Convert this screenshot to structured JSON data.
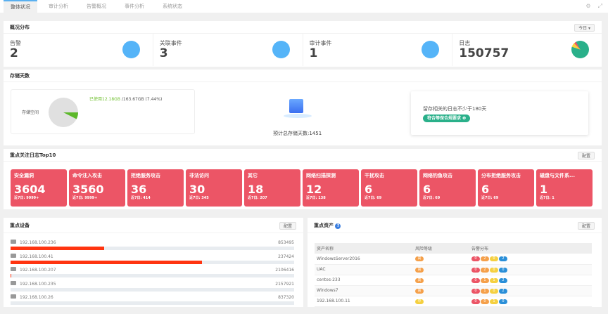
{
  "tabs": [
    "整体状况",
    "审计分析",
    "告警概况",
    "事件分析",
    "系统状态"
  ],
  "overview": {
    "title": "概况分布",
    "range": "今日 ▾",
    "stats": [
      {
        "label": "告警",
        "value": "2"
      },
      {
        "label": "关联事件",
        "value": "3"
      },
      {
        "label": "审计事件",
        "value": "1"
      },
      {
        "label": "日志",
        "value": "150757"
      }
    ]
  },
  "storage": {
    "title": "存储天数",
    "space_label": "存储空间",
    "used": "已使用12.18GB",
    "total": " /163.67GB (7.44%)",
    "used_fraction": 0.0744,
    "days_text": "预计总存储天数:1451",
    "tip": "留存相关的日志不少于180天",
    "badge": "符合等保合规要求 ❶"
  },
  "top10": {
    "title": "重点关注日志Top10",
    "config": "配置",
    "sub_prefix": "近7日:",
    "items": [
      {
        "name": "安全漏洞",
        "value": "3604",
        "week": "9999+"
      },
      {
        "name": "命令注入攻击",
        "value": "3560",
        "week": "9999+"
      },
      {
        "name": "拒绝服务攻击",
        "value": "36",
        "week": "414"
      },
      {
        "name": "非法访问",
        "value": "30",
        "week": "345"
      },
      {
        "name": "其它",
        "value": "18",
        "week": "207"
      },
      {
        "name": "网络扫描探测",
        "value": "12",
        "week": "138"
      },
      {
        "name": "干扰攻击",
        "value": "6",
        "week": "69"
      },
      {
        "name": "网络钓鱼攻击",
        "value": "6",
        "week": "69"
      },
      {
        "name": "分布拒绝服务攻击",
        "value": "6",
        "week": "69"
      },
      {
        "name": "磁盘与文件系...",
        "value": "1",
        "week": "1"
      }
    ]
  },
  "devices": {
    "title": "重点设备",
    "config": "配置",
    "items": [
      {
        "ip": "192.168.100.236",
        "count": "853495",
        "fraction": 0.33
      },
      {
        "ip": "192.168.100.41",
        "count": "237424",
        "fraction": 0.675
      },
      {
        "ip": "192.168.100.207",
        "count": "2106416",
        "fraction": 0.003
      },
      {
        "ip": "192.168.100.235",
        "count": "2157921",
        "fraction": 0
      },
      {
        "ip": "192.168.100.26",
        "count": "837320",
        "fraction": 0
      }
    ]
  },
  "assets": {
    "title": "重点资产",
    "config": "配置",
    "headers": [
      "资产名称",
      "风险等级",
      "告警分布"
    ],
    "colors": {
      "high": "#f5a04a",
      "mid": "#f5d040",
      "a": "#ec5566",
      "b": "#f5a04a",
      "c": "#f5d040",
      "d": "#2a8fd8"
    },
    "rows": [
      {
        "name": "WindowsServer2016",
        "risk": "高",
        "level": "high",
        "dist": [
          "0",
          "2",
          "0",
          "2"
        ]
      },
      {
        "name": "UAC",
        "risk": "高",
        "level": "high",
        "dist": [
          "0",
          "2",
          "0",
          "0"
        ]
      },
      {
        "name": "centos-233",
        "risk": "高",
        "level": "high",
        "dist": [
          "0",
          "1",
          "1",
          "2"
        ]
      },
      {
        "name": "Windows7",
        "risk": "高",
        "level": "high",
        "dist": [
          "0",
          "1",
          "0",
          "2"
        ]
      },
      {
        "name": "192.168.100.11",
        "risk": "中",
        "level": "mid",
        "dist": [
          "0",
          "0",
          "1",
          "0"
        ]
      }
    ]
  }
}
